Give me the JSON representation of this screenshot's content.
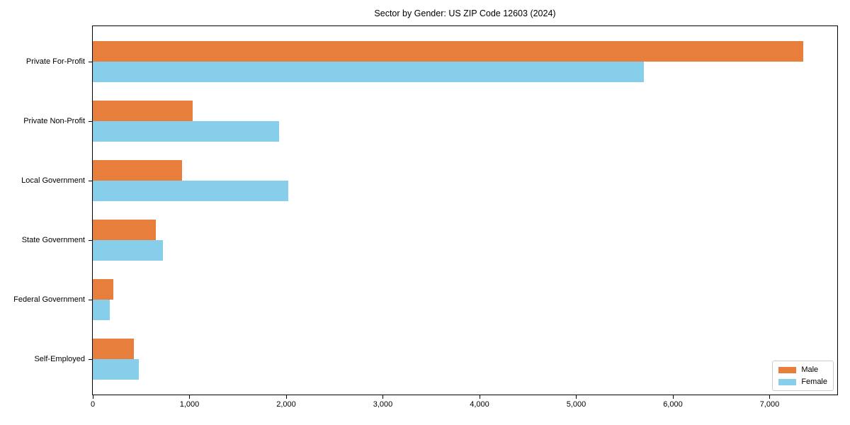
{
  "chart_data": {
    "type": "bar",
    "orientation": "horizontal",
    "title": "Sector by Gender: US ZIP Code 12603 (2024)",
    "categories": [
      "Private For-Profit",
      "Private Non-Profit",
      "Local Government",
      "State Government",
      "Federal Government",
      "Self-Employed"
    ],
    "series": [
      {
        "name": "Male",
        "color": "#E87E3C",
        "values": [
          7350,
          1030,
          925,
          655,
          210,
          425
        ]
      },
      {
        "name": "Female",
        "color": "#87CEEB",
        "values": [
          5700,
          1930,
          2025,
          725,
          175,
          475
        ]
      }
    ],
    "xlabel": "",
    "ylabel": "",
    "xlim": [
      0,
      7700
    ],
    "xticks": [
      0,
      1000,
      2000,
      3000,
      4000,
      5000,
      6000,
      7000
    ],
    "xtick_labels": [
      "0",
      "1,000",
      "2,000",
      "3,000",
      "4,000",
      "5,000",
      "6,000",
      "7,000"
    ],
    "grid": false,
    "legend": {
      "position": "lower right"
    },
    "colors": {
      "male": "#E87E3C",
      "female": "#87CEEB",
      "axis": "#000000",
      "legend_border": "#cccccc"
    }
  }
}
